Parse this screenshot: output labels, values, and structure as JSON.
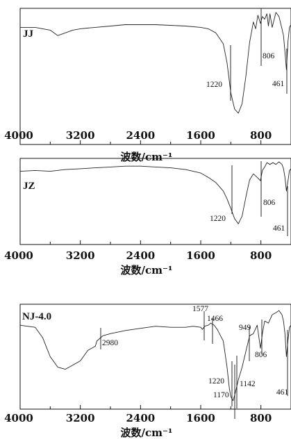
{
  "chart_data": [
    {
      "type": "line",
      "sample_label": "JJ",
      "xlabel": "波数/cm⁻¹",
      "xlim": [
        4000,
        400
      ],
      "x_ticks": [
        "4000",
        "3200",
        "2400",
        "1600",
        "800"
      ],
      "x_tick_values": [
        4000,
        3200,
        2400,
        1600,
        800
      ],
      "y_relative_range": [
        0,
        100
      ],
      "series": [
        {
          "x": [
            4000,
            3800,
            3600,
            3500,
            3400,
            3300,
            3200,
            3000,
            2800,
            2600,
            2400,
            2200,
            2000,
            1800,
            1600,
            1500,
            1400,
            1300,
            1250,
            1200,
            1150,
            1100,
            1050,
            1000,
            950,
            900,
            870,
            840,
            806,
            780,
            750,
            720,
            700,
            680,
            650,
            600,
            560,
            520,
            500,
            480,
            461,
            440,
            420,
            400
          ],
          "y": [
            86,
            86,
            84,
            80,
            82,
            84,
            85,
            86,
            87,
            88,
            88,
            88,
            87.5,
            87,
            86,
            85,
            82,
            74,
            60,
            38,
            26,
            23,
            30,
            50,
            75,
            90,
            85,
            95,
            89,
            94,
            92,
            96,
            87,
            96,
            86,
            97,
            94,
            85,
            80,
            68,
            55,
            76,
            86,
            88
          ]
        }
      ],
      "peak_labels": [
        "1220",
        "806",
        "461"
      ],
      "peak_values": [
        1220,
        806,
        461
      ]
    },
    {
      "type": "line",
      "sample_label": "JZ",
      "xlabel": "波数/cm⁻¹",
      "xlim": [
        4000,
        400
      ],
      "x_ticks": [
        "4000",
        "3200",
        "2400",
        "1600",
        "800"
      ],
      "x_tick_values": [
        4000,
        3200,
        2400,
        1600,
        800
      ],
      "y_relative_range": [
        0,
        100
      ],
      "series": [
        {
          "x": [
            4000,
            3800,
            3600,
            3400,
            3200,
            3000,
            2800,
            2600,
            2400,
            2200,
            2000,
            1800,
            1600,
            1500,
            1400,
            1300,
            1250,
            1200,
            1150,
            1100,
            1050,
            1000,
            950,
            900,
            850,
            806,
            780,
            750,
            720,
            680,
            640,
            600,
            560,
            520,
            500,
            480,
            461,
            440,
            420,
            400
          ],
          "y": [
            85,
            86,
            85,
            87,
            88,
            89,
            90,
            91,
            91,
            90,
            89,
            87,
            83,
            78,
            72,
            62,
            53,
            42,
            30,
            24,
            33,
            55,
            75,
            82,
            78,
            74,
            86,
            90,
            95,
            93,
            95,
            93,
            96,
            93,
            88,
            78,
            62,
            74,
            86,
            88
          ]
        }
      ],
      "peak_labels": [
        "1220",
        "806",
        "461"
      ],
      "peak_values": [
        1220,
        806,
        461
      ]
    },
    {
      "type": "line",
      "sample_label": "NJ-4.0",
      "xlabel": "波数/cm⁻¹",
      "xlim": [
        4000,
        400
      ],
      "x_ticks": [
        "4000",
        "3200",
        "2400",
        "1600",
        "800"
      ],
      "x_tick_values": [
        4000,
        3200,
        2400,
        1600,
        800
      ],
      "y_relative_range": [
        0,
        100
      ],
      "series": [
        {
          "x": [
            4000,
            3800,
            3700,
            3600,
            3500,
            3400,
            3300,
            3200,
            3100,
            3000,
            2980,
            2900,
            2800,
            2600,
            2400,
            2200,
            2000,
            1800,
            1700,
            1600,
            1577,
            1550,
            1500,
            1466,
            1420,
            1380,
            1300,
            1250,
            1220,
            1200,
            1170,
            1142,
            1100,
            1050,
            1000,
            949,
            900,
            850,
            806,
            780,
            750,
            700,
            650,
            600,
            560,
            520,
            500,
            480,
            461,
            440,
            420,
            400
          ],
          "y": [
            80,
            78,
            68,
            50,
            40,
            38,
            42,
            46,
            56,
            60,
            65,
            70,
            72,
            75,
            77,
            79,
            78,
            78,
            79,
            78,
            76,
            79,
            80,
            82,
            80,
            76,
            65,
            40,
            20,
            12,
            8,
            15,
            28,
            40,
            55,
            70,
            72,
            80,
            58,
            72,
            84,
            82,
            90,
            92,
            94,
            90,
            84,
            72,
            50,
            66,
            78,
            80
          ]
        }
      ],
      "peak_labels": [
        "1577",
        "1466",
        "2980",
        "949",
        "806",
        "461",
        "1220",
        "1142",
        "1170"
      ],
      "peak_values": [
        1577,
        1466,
        2980,
        949,
        806,
        461,
        1220,
        1142,
        1170
      ]
    }
  ]
}
